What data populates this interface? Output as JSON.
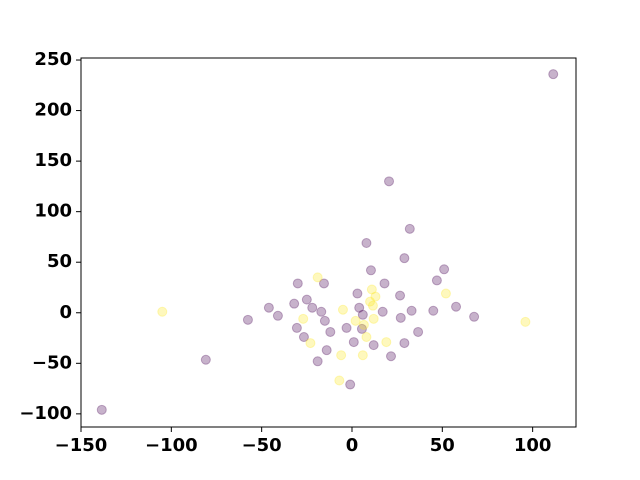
{
  "chart_data": {
    "type": "scatter",
    "xlim": [
      -150,
      124
    ],
    "ylim": [
      -113,
      252
    ],
    "xticks": [
      {
        "value": -150,
        "label": "−150"
      },
      {
        "value": -100,
        "label": "−100"
      },
      {
        "value": -50,
        "label": "−50"
      },
      0,
      50,
      100
    ],
    "yticks": [
      {
        "value": -100,
        "label": "−100"
      },
      {
        "value": -50,
        "label": "−50"
      },
      0,
      50,
      100,
      150,
      200,
      250
    ],
    "grid": false,
    "series": [
      {
        "color": "#440154",
        "x": [
          111.4,
          -138.5,
          -80.9,
          -57.6,
          -46,
          -41,
          -32,
          -30,
          -30.5,
          -25,
          -26.6,
          -22,
          -17,
          -15.5,
          -15,
          -12,
          -14,
          -19,
          -3,
          -1,
          1,
          3,
          4,
          6,
          5.5,
          8,
          10.5,
          12,
          17,
          18,
          20.5,
          21.6,
          26.6,
          27,
          29,
          29,
          32,
          33,
          36.6,
          45,
          47,
          51,
          57.6,
          67.6
        ],
        "values": [
          236,
          -96,
          -46.5,
          -7,
          5,
          -3,
          9,
          29,
          -15,
          13,
          -24,
          5,
          1,
          29,
          -8,
          -19,
          -37,
          -48,
          -15,
          -71,
          -29,
          19,
          5,
          -2,
          -16,
          69,
          42,
          -32,
          1,
          29,
          130,
          -43,
          17,
          -5,
          54,
          -30,
          83,
          2,
          -19,
          2,
          32,
          43,
          6,
          -4
        ]
      },
      {
        "color": "#fde725",
        "x": [
          -105,
          -19,
          -27,
          -23,
          -6,
          -7,
          -5,
          2,
          6.6,
          6,
          8,
          10,
          11,
          11.6,
          12,
          13,
          19,
          52,
          96
        ],
        "values": [
          1,
          35,
          -6,
          -30,
          -42,
          -67,
          3,
          -8,
          -12,
          -42,
          -24,
          11,
          23,
          7,
          -6,
          16,
          -29,
          19,
          -9
        ]
      }
    ]
  }
}
